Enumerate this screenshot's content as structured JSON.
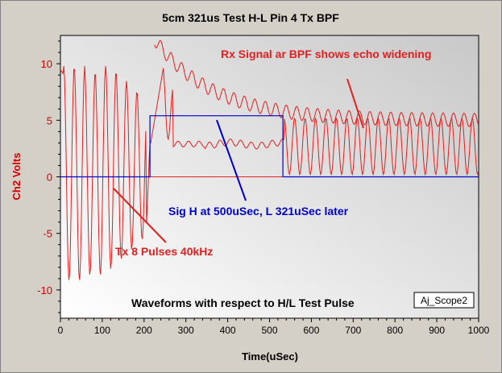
{
  "chart_data": {
    "type": "line",
    "title": "5cm 321us Test H-L Pin 4 Tx BPF",
    "xlabel": "Time(uSec)",
    "ylabel": "Ch2 Volts",
    "xlim": [
      0,
      1000
    ],
    "ylim": [
      -12.5,
      12.5
    ],
    "xticks": [
      0,
      100,
      200,
      300,
      400,
      500,
      600,
      700,
      800,
      900,
      1000
    ],
    "yticks": [
      -10,
      -5,
      0,
      5,
      10
    ],
    "grid": false,
    "series": [
      {
        "color": "#e02020",
        "sampling": {
          "x_start": 0,
          "x_end": 1000,
          "step": 2
        },
        "values_note": "",
        "values": []
      },
      {
        "color": "#0000cc",
        "x": [
          0,
          214,
          214,
          532,
          532,
          1000
        ],
        "y": [
          0,
          0,
          5.4,
          5.4,
          0,
          0
        ]
      }
    ],
    "reference_lines": [
      {
        "axis": "y",
        "value": 0,
        "color": "#e02020"
      }
    ],
    "annotations": [
      {
        "text": "Rx Signal ar BPF shows echo widening",
        "color": "#e02020"
      },
      {
        "text": "Sig H at 500uSec, L 321uSec later",
        "color": "#0000cc"
      },
      {
        "text": "Tx 8 Pulses 40kHz",
        "color": "#e02020"
      },
      {
        "text": "Waveforms with respect to H/L Test Pulse",
        "color": "#000000"
      },
      {
        "text": "Aj_Scope2",
        "color": "#000000"
      }
    ]
  }
}
